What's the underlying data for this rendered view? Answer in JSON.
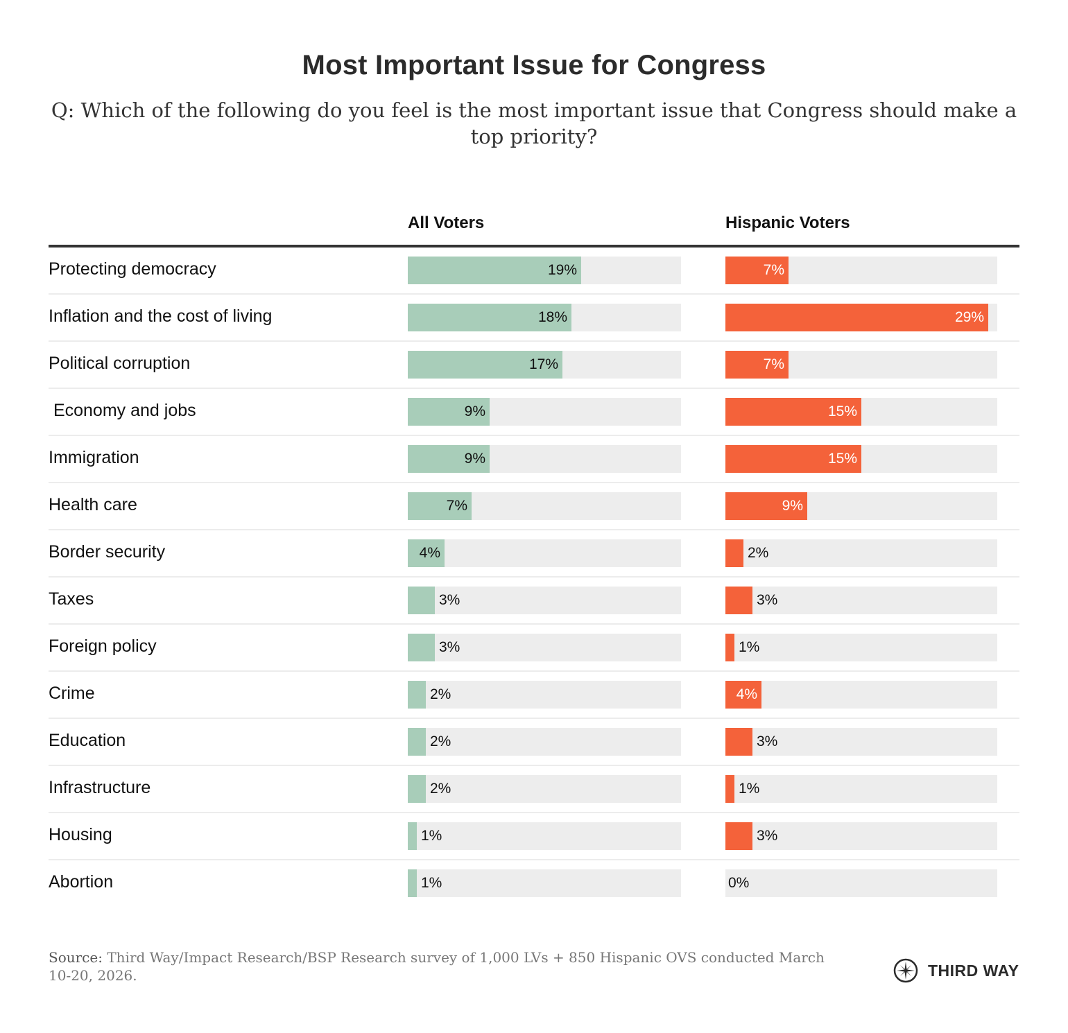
{
  "chart_data": {
    "type": "bar",
    "orientation": "horizontal",
    "title": "Most Important Issue for Congress",
    "subtitle": "Q: Which of the following do you feel is the most important issue that Congress should make a top priority?",
    "categories": [
      "Protecting democracy",
      "Inflation and the cost of living",
      "Political corruption",
      " Economy and jobs",
      "Immigration",
      "Health care",
      "Border security",
      "Taxes",
      "Foreign policy",
      "Crime",
      "Education",
      "Infrastructure",
      "Housing",
      "Abortion"
    ],
    "series": [
      {
        "name": "All Voters",
        "color": "#a8cdb9",
        "values": [
          19,
          18,
          17,
          9,
          9,
          7,
          4,
          3,
          3,
          2,
          2,
          2,
          1,
          1
        ]
      },
      {
        "name": "Hispanic Voters",
        "color": "#f4623a",
        "values": [
          7,
          29,
          7,
          15,
          15,
          9,
          2,
          3,
          1,
          4,
          3,
          1,
          3,
          0
        ]
      }
    ],
    "value_suffix": "%",
    "xlim": [
      0,
      30
    ],
    "track_color": "#ededed",
    "grid": false,
    "legend": "column-headers"
  },
  "footer": {
    "source_label": "Source:",
    "source_text": " Third Way/Impact Research/BSP Research survey of 1,000 LVs + 850 Hispanic OVS conducted March 10-20, 2026."
  },
  "logo": {
    "icon": "compass-star-icon",
    "text": "THIRD WAY"
  }
}
